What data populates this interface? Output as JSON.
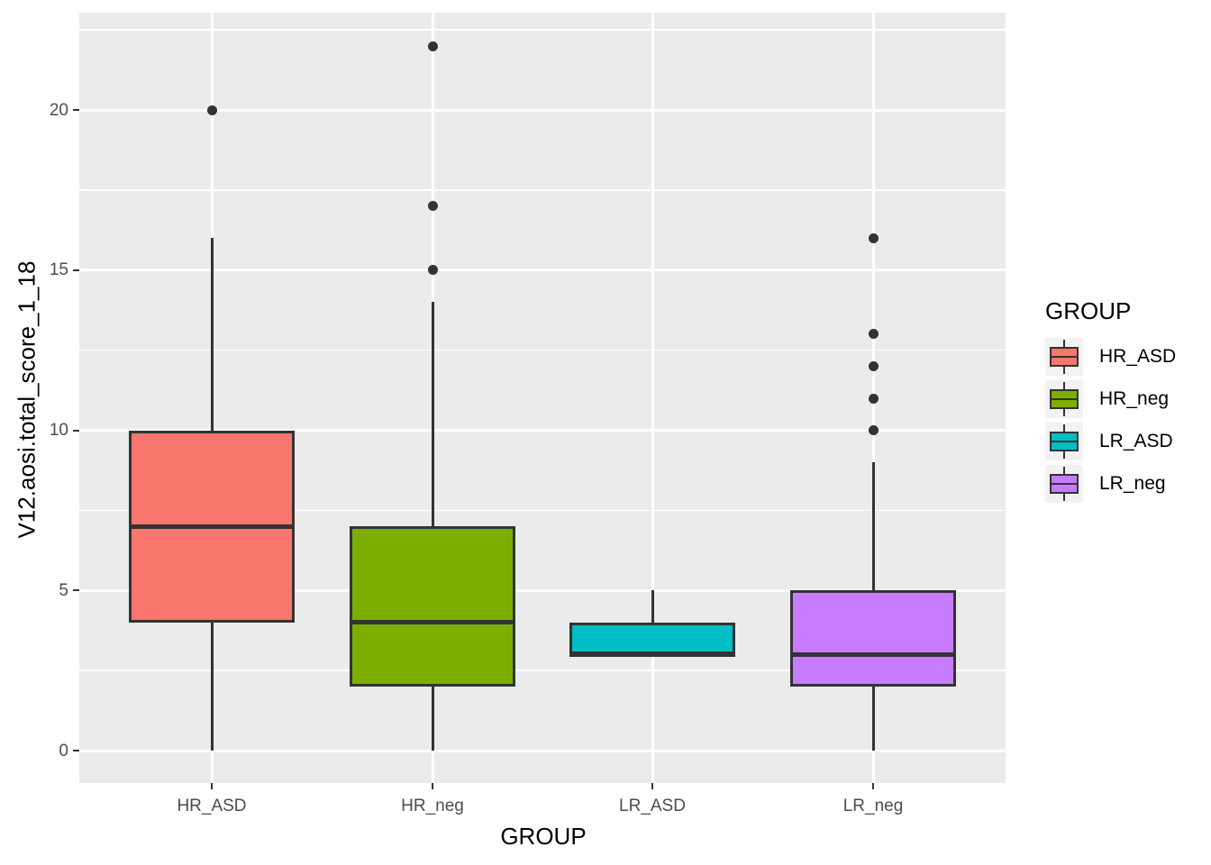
{
  "chart_data": {
    "type": "boxplot",
    "title": "",
    "xlabel": "GROUP",
    "ylabel": "V12.aosi.total_score_1_18",
    "categories": [
      "HR_ASD",
      "HR_neg",
      "LR_ASD",
      "LR_neg"
    ],
    "y_tick_labels": [
      "0",
      "5",
      "10",
      "15",
      "20"
    ],
    "y_ticks": [
      0,
      5,
      10,
      15,
      20
    ],
    "y_minor_ticks": [
      2.5,
      7.5,
      12.5,
      17.5,
      22.5
    ],
    "ylim": [
      -1.1,
      23.1
    ],
    "grid": true,
    "legend_position": "right",
    "series": [
      {
        "name": "HR_ASD",
        "color": "#F8766D",
        "whisker_low": 0,
        "q1": 4,
        "median": 7,
        "q3": 10,
        "whisker_high": 16,
        "outliers": [
          20
        ]
      },
      {
        "name": "HR_neg",
        "color": "#7CAE00",
        "whisker_low": 0,
        "q1": 2,
        "median": 4,
        "q3": 7,
        "whisker_high": 14,
        "outliers": [
          15,
          17,
          22
        ]
      },
      {
        "name": "LR_ASD",
        "color": "#00BFC4",
        "whisker_low": 3,
        "q1": 3,
        "median": 3,
        "q3": 4,
        "whisker_high": 5,
        "outliers": []
      },
      {
        "name": "LR_neg",
        "color": "#C77CFF",
        "whisker_low": 0,
        "q1": 2,
        "median": 3,
        "q3": 5,
        "whisker_high": 9,
        "outliers": [
          10,
          11,
          12,
          13,
          16
        ]
      }
    ]
  },
  "legend": {
    "title": "GROUP",
    "entries": [
      {
        "label": "HR_ASD",
        "color": "#F8766D"
      },
      {
        "label": "HR_neg",
        "color": "#7CAE00"
      },
      {
        "label": "LR_ASD",
        "color": "#00BFC4"
      },
      {
        "label": "LR_neg",
        "color": "#C77CFF"
      }
    ]
  },
  "colors": {
    "panel_bg": "#EBEBEB",
    "grid": "#FFFFFF",
    "box_border": "#333333",
    "tick_text": "#4D4D4D",
    "axis_title_text": "#000000",
    "legend_key_bg": "#F2F2F2",
    "outer_bg": "#FFFFFF"
  }
}
